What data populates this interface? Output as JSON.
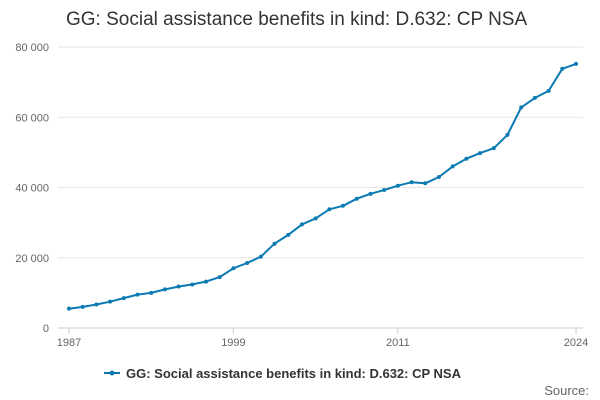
{
  "chart_data": {
    "type": "line",
    "title": "GG: Social assistance benefits in kind: D.632: CP NSA",
    "xlabel": "",
    "ylabel": "",
    "xlim": [
      1987,
      2024
    ],
    "ylim": [
      0,
      80000
    ],
    "x_ticks": [
      1987,
      1999,
      2011,
      2024
    ],
    "x_tick_labels": [
      "1987",
      "1999",
      "2011",
      "2024"
    ],
    "y_ticks": [
      0,
      20000,
      40000,
      60000,
      80000
    ],
    "y_tick_labels": [
      "0",
      "20 000",
      "40 000",
      "60 000",
      "80 000"
    ],
    "grid": true,
    "legend_position": "bottom",
    "series": [
      {
        "name": "GG: Social assistance benefits in kind: D.632: CP NSA",
        "color": "#0a7ab3",
        "x": [
          1987,
          1988,
          1989,
          1990,
          1991,
          1992,
          1993,
          1994,
          1995,
          1996,
          1997,
          1998,
          1999,
          2000,
          2001,
          2002,
          2003,
          2004,
          2005,
          2006,
          2007,
          2008,
          2009,
          2010,
          2011,
          2012,
          2013,
          2014,
          2015,
          2016,
          2017,
          2018,
          2019,
          2020,
          2021,
          2022,
          2023,
          2024
        ],
        "values": [
          5500,
          6000,
          6700,
          7500,
          8500,
          9500,
          10000,
          11000,
          11800,
          12400,
          13200,
          14500,
          17000,
          18500,
          20300,
          24000,
          26500,
          29500,
          31200,
          33800,
          34800,
          36800,
          38200,
          39300,
          40500,
          41500,
          41200,
          43000,
          46000,
          48200,
          49800,
          51200,
          55000,
          62800,
          65500,
          67500,
          73800,
          75200
        ]
      }
    ]
  },
  "legend": {
    "label": "GG: Social assistance benefits in kind: D.632: CP NSA"
  },
  "footer": {
    "source_label": "Source:"
  }
}
